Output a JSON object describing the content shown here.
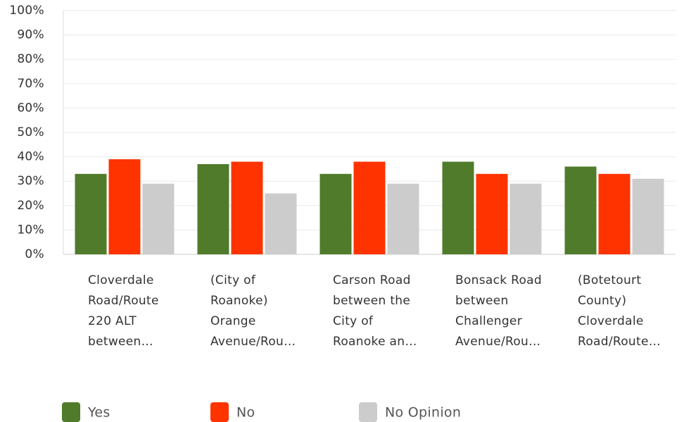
{
  "chart_data": {
    "type": "bar",
    "categories": [
      "Cloverdale\nRoad/Route\n220 ALT\nbetween…",
      "(City of\nRoanoke)\nOrange\nAvenue/Rou…",
      "Carson Road\nbetween the\nCity of\nRoanoke an…",
      "Bonsack Road\nbetween\nChallenger\nAvenue/Rou…",
      "(Botetourt\nCounty)\nCloverdale\nRoad/Route…"
    ],
    "series": [
      {
        "name": "Yes",
        "color": "#507b2b",
        "values": [
          33,
          37,
          33,
          38,
          36
        ]
      },
      {
        "name": "No",
        "color": "#ff3300",
        "values": [
          39,
          38,
          38,
          33,
          33
        ]
      },
      {
        "name": "No Opinion",
        "color": "#cccccc",
        "values": [
          29,
          25,
          29,
          29,
          31
        ]
      }
    ],
    "ylim": [
      0,
      100
    ],
    "yticks": [
      {
        "value": 0,
        "label": "0%"
      },
      {
        "value": 10,
        "label": "10%"
      },
      {
        "value": 20,
        "label": "20%"
      },
      {
        "value": 30,
        "label": "30%"
      },
      {
        "value": 40,
        "label": "40%"
      },
      {
        "value": 50,
        "label": "50%"
      },
      {
        "value": 60,
        "label": "60%"
      },
      {
        "value": 70,
        "label": "70%"
      },
      {
        "value": 80,
        "label": "80%"
      },
      {
        "value": 90,
        "label": "90%"
      },
      {
        "value": 100,
        "label": "100%"
      }
    ],
    "grid": true,
    "legend": "bottom"
  }
}
